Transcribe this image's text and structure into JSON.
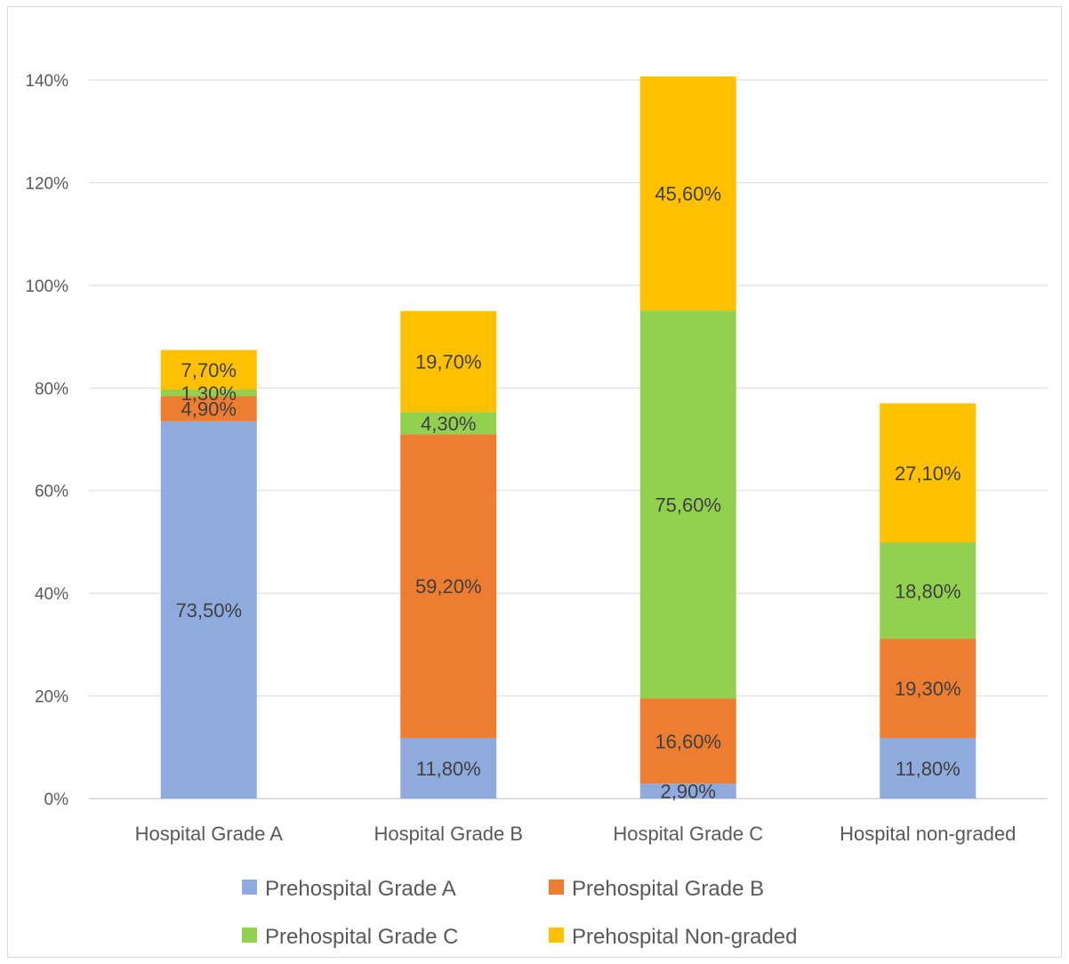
{
  "chart_data": {
    "type": "bar",
    "stacked": true,
    "categories": [
      "Hospital Grade A",
      "Hospital Grade B",
      "Hospital Grade C",
      "Hospital non-graded"
    ],
    "series": [
      {
        "name": "Prehospital Grade A",
        "color": "#8FAADC",
        "values": [
          73.5,
          11.8,
          2.9,
          11.8
        ],
        "labels": [
          "73,50%",
          "11,80%",
          "2,90%",
          "11,80%"
        ]
      },
      {
        "name": "Prehospital Grade B",
        "color": "#ED7D31",
        "values": [
          4.9,
          59.2,
          16.6,
          19.3
        ],
        "labels": [
          "4,90%",
          "59,20%",
          "16,60%",
          "19,30%"
        ]
      },
      {
        "name": "Prehospital Grade C",
        "color": "#92D050",
        "values": [
          1.3,
          4.3,
          75.6,
          18.8
        ],
        "labels": [
          "1,30%",
          "4,30%",
          "75,60%",
          "18,80%"
        ]
      },
      {
        "name": "Prehospital Non-graded",
        "color": "#FFC000",
        "values": [
          7.7,
          19.7,
          45.6,
          27.1
        ],
        "labels": [
          "7,70%",
          "19,70%",
          "45,60%",
          "27,10%"
        ]
      }
    ],
    "ylim": [
      0,
      140
    ],
    "yticks": [
      0,
      20,
      40,
      60,
      80,
      100,
      120,
      140
    ],
    "ytick_labels": [
      "0%",
      "20%",
      "40%",
      "60%",
      "80%",
      "100%",
      "120%",
      "140%"
    ],
    "title": "",
    "xlabel": "",
    "ylabel": "",
    "grid": true,
    "legend_position": "bottom"
  }
}
